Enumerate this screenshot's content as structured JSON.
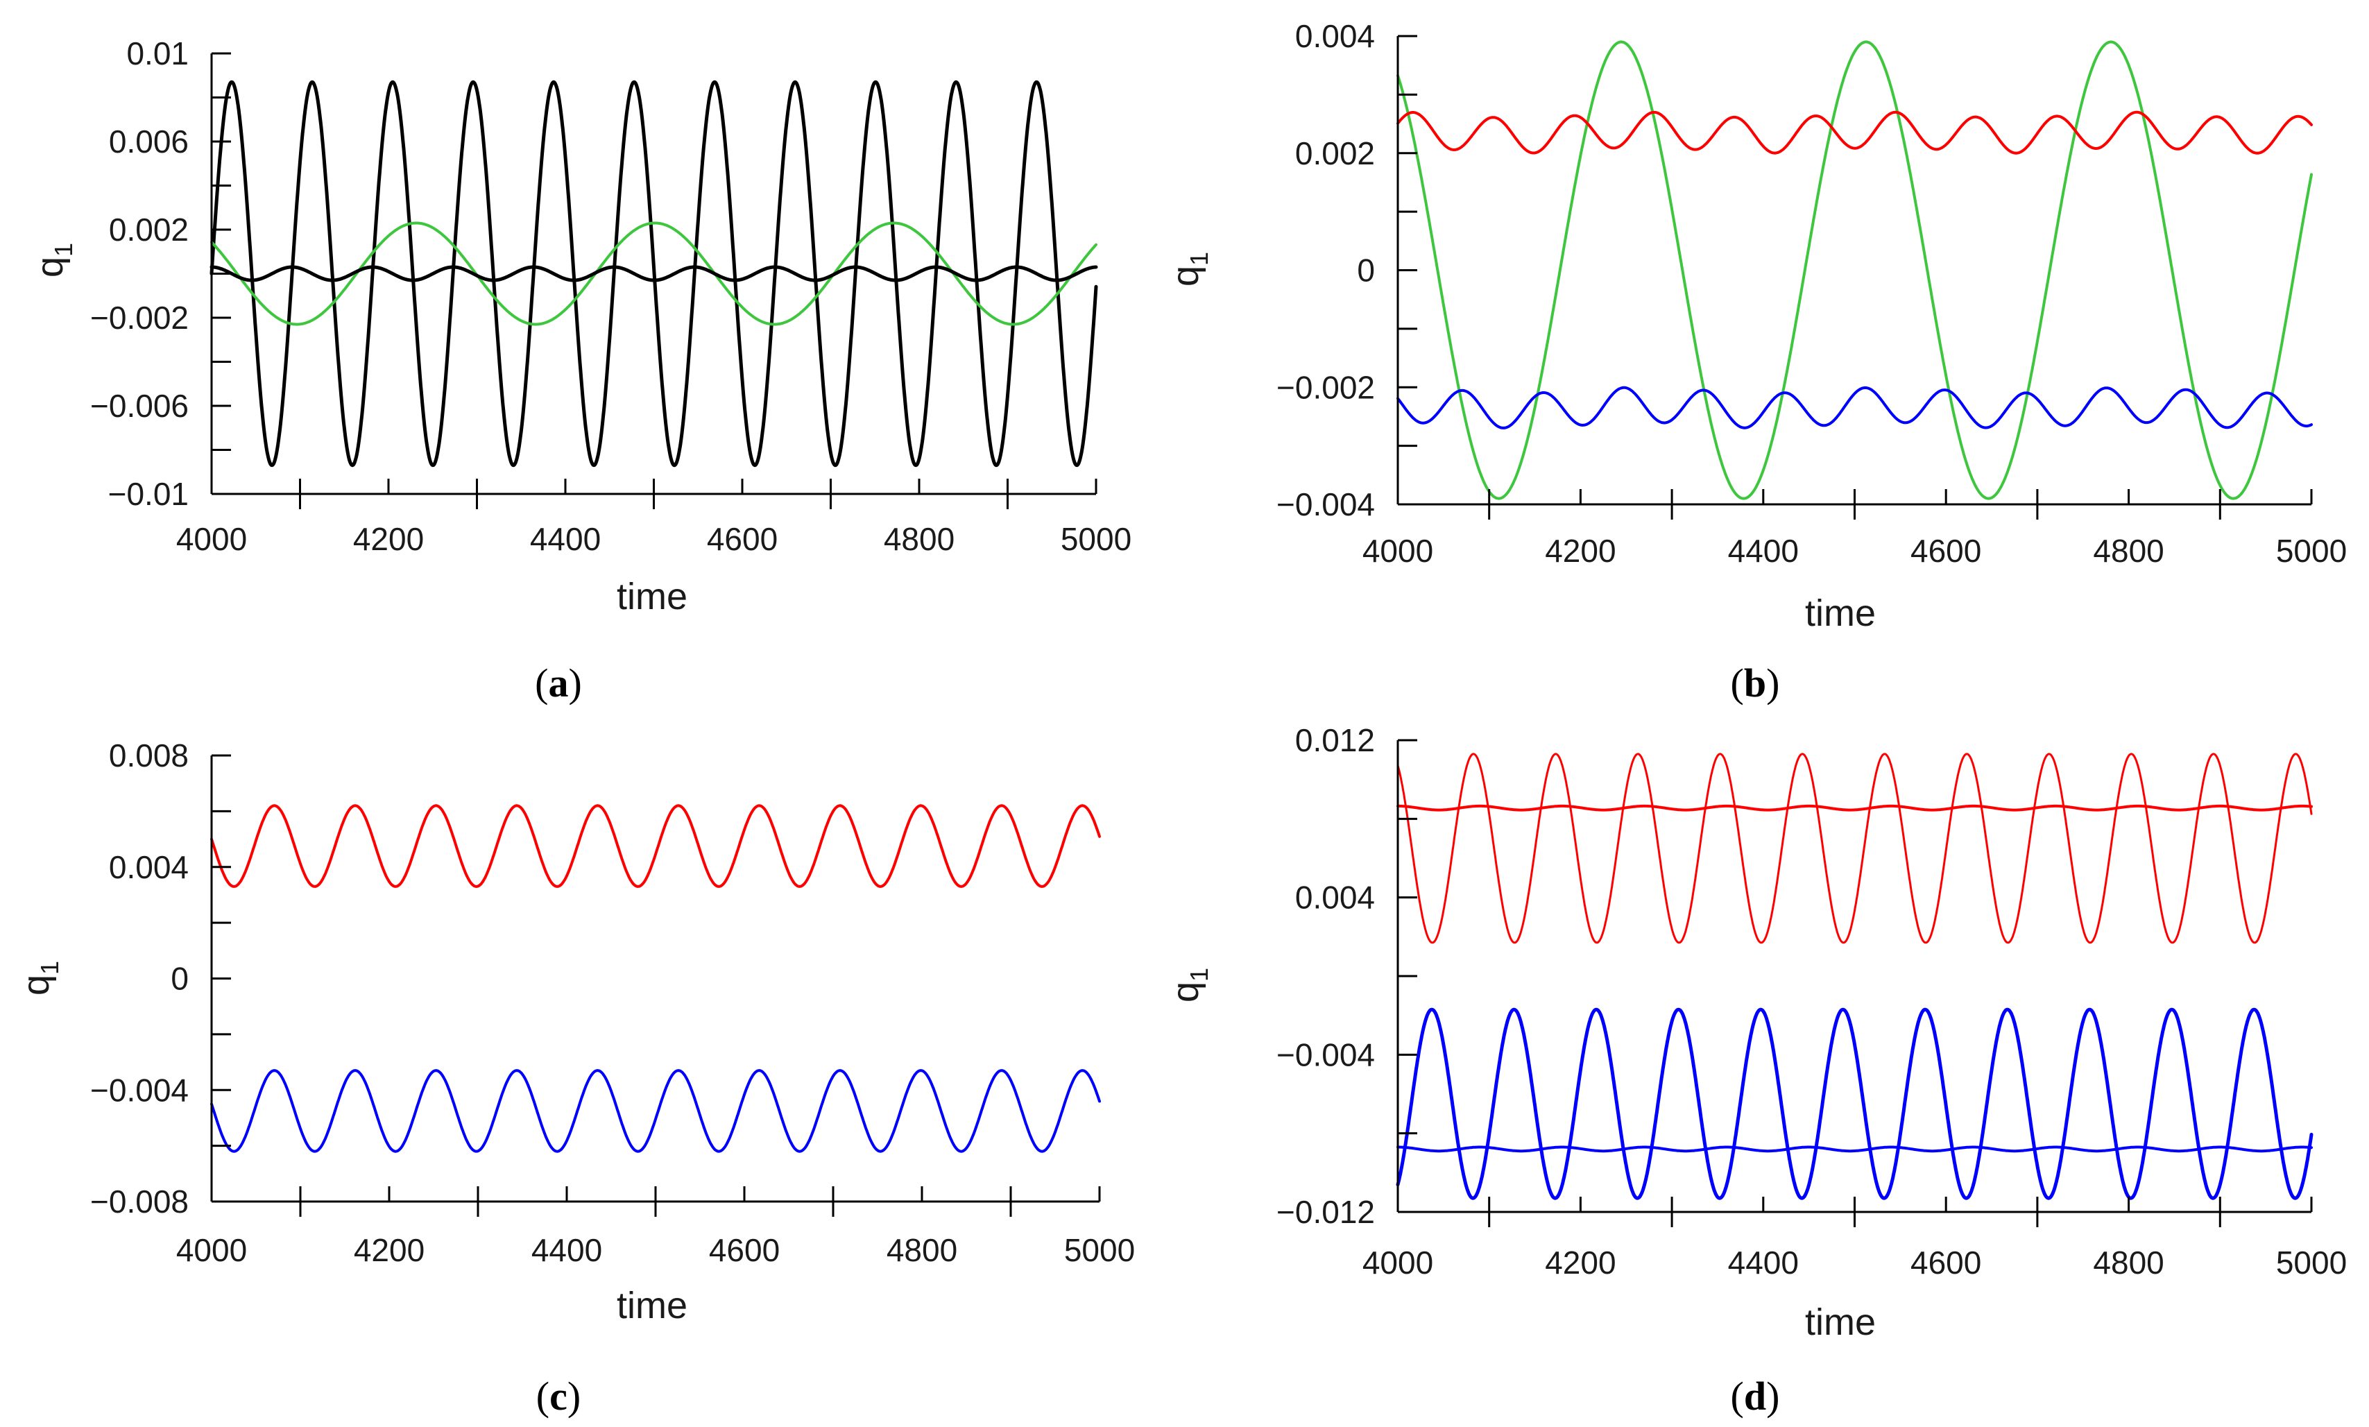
{
  "chart_data": [
    {
      "panel": "a",
      "caption": "a",
      "type": "line",
      "xlabel": "time",
      "ylabel": "q",
      "ylabel_subscript": "1",
      "xlim": [
        4000,
        5000
      ],
      "ylim": [
        -0.01,
        0.01
      ],
      "xticks": [
        4000,
        4200,
        4400,
        4600,
        4800,
        5000
      ],
      "xtick_labels": [
        "4000",
        "4200",
        "4400",
        "4600",
        "4800",
        "5000"
      ],
      "yticks": [
        0.01,
        0.006,
        0.002,
        -0.002,
        -0.006,
        -0.01
      ],
      "ytick_labels": [
        "0.01",
        "0.006",
        "0.002",
        "−0.002",
        "−0.006",
        "−0.01"
      ],
      "series": [
        {
          "name": "black large-amplitude oscillation",
          "color": "#000000",
          "mean": 0.0,
          "amplitude": 0.0087,
          "period": 91,
          "phase_at_start": -1.57,
          "stroke": 5
        },
        {
          "name": "green oscillation",
          "color": "#3fc63f",
          "mean": 0.0,
          "amplitude": 0.0023,
          "period": 270,
          "phase_at_start": 0.9,
          "stroke": 4
        },
        {
          "name": "black small-amplitude oscillation",
          "color": "#000000",
          "mean": 0.0,
          "amplitude": 0.0003,
          "period": 91,
          "phase_at_start": 0.0,
          "stroke": 5
        }
      ]
    },
    {
      "panel": "b",
      "caption": "b",
      "type": "line",
      "xlabel": "time",
      "ylabel": "q",
      "ylabel_subscript": "1",
      "xlim": [
        4000,
        5000
      ],
      "ylim": [
        -0.004,
        0.004
      ],
      "xticks": [
        4000,
        4200,
        4400,
        4600,
        4800,
        5000
      ],
      "xtick_labels": [
        "4000",
        "4200",
        "4400",
        "4600",
        "4800",
        "5000"
      ],
      "yticks": [
        0.004,
        0.002,
        0,
        -0.002,
        -0.004
      ],
      "ytick_labels": [
        "0.004",
        "0.002",
        "0",
        "−0.002",
        "−0.004"
      ],
      "series": [
        {
          "name": "green large oscillation",
          "color": "#3fc63f",
          "mean": 0.0,
          "amplitude": 0.0039,
          "period": 268,
          "phase_at_start": 0.55,
          "stroke": 4
        },
        {
          "name": "red oscillation",
          "color": "#ff0000",
          "mean": 0.00235,
          "amplitude": 0.0003,
          "period": 88,
          "phase_at_start": -1.2,
          "stroke": 4,
          "mod_amplitude": 5e-05,
          "mod_period": 268
        },
        {
          "name": "blue oscillation",
          "color": "#0000ff",
          "mean": -0.00235,
          "amplitude": 0.0003,
          "period": 88,
          "phase_at_start": 1.2,
          "stroke": 4,
          "mod_amplitude": 5e-05,
          "mod_period": 268
        }
      ]
    },
    {
      "panel": "c",
      "caption": "c",
      "type": "line",
      "xlabel": "time",
      "ylabel": "q",
      "ylabel_subscript": "1",
      "xlim": [
        4000,
        5000
      ],
      "ylim": [
        -0.008,
        0.008
      ],
      "xticks": [
        4000,
        4200,
        4400,
        4600,
        4800,
        5000
      ],
      "xtick_labels": [
        "4000",
        "4200",
        "4400",
        "4600",
        "4800",
        "5000"
      ],
      "yticks": [
        0.008,
        0.004,
        0,
        -0.004,
        -0.008
      ],
      "ytick_labels": [
        "0.008",
        "0.004",
        "0",
        "−0.004",
        "−0.008"
      ],
      "series": [
        {
          "name": "red oscillation",
          "color": "#ff0000",
          "mean": 0.00475,
          "amplitude": 0.00145,
          "period": 91,
          "phase_at_start": 1.4,
          "stroke": 4
        },
        {
          "name": "blue oscillation",
          "color": "#0000ff",
          "mean": -0.00475,
          "amplitude": 0.00145,
          "period": 91,
          "phase_at_start": 1.4,
          "stroke": 4
        }
      ]
    },
    {
      "panel": "d",
      "caption": "d",
      "type": "line",
      "xlabel": "time",
      "ylabel": "q",
      "ylabel_subscript": "1",
      "xlim": [
        4000,
        5000
      ],
      "ylim": [
        -0.012,
        0.012
      ],
      "xticks": [
        4000,
        4200,
        4400,
        4600,
        4800,
        5000
      ],
      "xtick_labels": [
        "4000",
        "4200",
        "4400",
        "4600",
        "4800",
        "5000"
      ],
      "yticks": [
        0.012,
        0.004,
        -0.004,
        -0.012
      ],
      "ytick_labels": [
        "0.012",
        "0.004",
        "−0.004",
        "−0.012"
      ],
      "series": [
        {
          "name": "red large oscillation",
          "color": "#ff0000",
          "mean": 0.0065,
          "amplitude": 0.0048,
          "period": 90,
          "phase_at_start": 0.5,
          "stroke": 3
        },
        {
          "name": "red small oscillation",
          "color": "#ff0000",
          "mean": 0.00855,
          "amplitude": 0.0001,
          "period": 90,
          "phase_at_start": 0.0,
          "stroke": 4
        },
        {
          "name": "blue large oscillation",
          "color": "#0000ff",
          "mean": -0.0065,
          "amplitude": 0.0048,
          "period": 90,
          "phase_at_start": -2.6,
          "stroke": 5,
          "clip_top": -0.0005
        },
        {
          "name": "blue small oscillation",
          "color": "#0000ff",
          "mean": -0.0088,
          "amplitude": 0.0001,
          "period": 90,
          "phase_at_start": 0.0,
          "stroke": 4
        }
      ]
    }
  ]
}
